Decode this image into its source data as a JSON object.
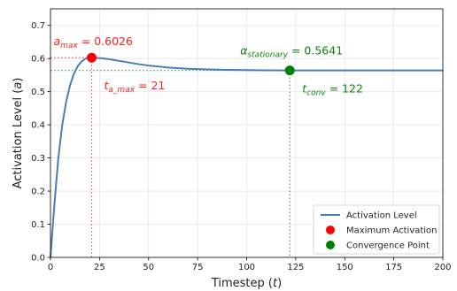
{
  "chart_data": {
    "type": "line",
    "title": "",
    "xlabel_main": "Timestep (",
    "xlabel_var": "t",
    "xlabel_end": ")",
    "ylabel_main": "Activation Level (",
    "ylabel_var": "a",
    "ylabel_end": ")",
    "xlim": [
      0,
      200
    ],
    "ylim": [
      0,
      0.75
    ],
    "grid": true,
    "legend_position": "lower-right",
    "x_ticks": [
      0,
      25,
      50,
      75,
      100,
      125,
      150,
      175,
      200
    ],
    "y_ticks": [
      0.0,
      0.1,
      0.2,
      0.3,
      0.4,
      0.5,
      0.6,
      0.7
    ],
    "x_tick_labels": [
      "0",
      "25",
      "50",
      "75",
      "100",
      "125",
      "150",
      "175",
      "200"
    ],
    "y_tick_labels": [
      "0.0",
      "0.1",
      "0.2",
      "0.3",
      "0.4",
      "0.5",
      "0.6",
      "0.7"
    ],
    "series": [
      {
        "name": "Activation Level",
        "color": "#4a7fb5",
        "x": [
          0,
          2,
          4,
          6,
          8,
          10,
          12,
          14,
          16,
          18,
          20,
          21,
          23,
          26,
          30,
          35,
          40,
          45,
          50,
          55,
          60,
          70,
          80,
          90,
          100,
          110,
          122,
          140,
          160,
          180,
          200
        ],
        "y": [
          0.0,
          0.16,
          0.3,
          0.4,
          0.47,
          0.52,
          0.555,
          0.578,
          0.592,
          0.6,
          0.6024,
          0.6026,
          0.6022,
          0.601,
          0.598,
          0.593,
          0.588,
          0.583,
          0.579,
          0.576,
          0.573,
          0.569,
          0.567,
          0.5658,
          0.5651,
          0.5646,
          0.5641,
          0.5641,
          0.5641,
          0.5641,
          0.5641
        ]
      }
    ],
    "points": {
      "max": {
        "name": "Maximum Activation",
        "x": 21,
        "y": 0.6026,
        "color": "#ff0000"
      },
      "conv": {
        "name": "Convergence Point",
        "x": 122,
        "y": 0.5641,
        "color": "#008000"
      }
    },
    "annotations": {
      "a_max_base": "a",
      "a_max_sub": "max",
      "a_max_value": " = 0.6026",
      "t_max_base": "t",
      "t_max_sub": "a_max",
      "t_max_value": " = 21",
      "stat_base": "α",
      "stat_sub": "stationary",
      "stat_value": " = 0.5641",
      "t_conv_base": "t",
      "t_conv_sub": "conv",
      "t_conv_value": " = 122"
    },
    "legend": [
      "Activation Level",
      "Maximum Activation",
      "Convergence Point"
    ]
  }
}
